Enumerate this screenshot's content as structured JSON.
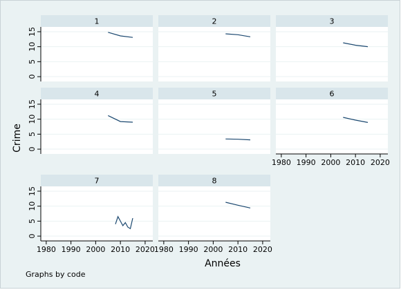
{
  "chart_data": {
    "type": "line",
    "xlabel": "Années",
    "ylabel": "Crime",
    "note": "Graphs by code",
    "color": "#1a476f",
    "grid": true,
    "xlim": [
      1977.8,
      2023.1
    ],
    "xticks": [
      1980,
      1990,
      2000,
      2010,
      2020
    ],
    "ylim": [
      -1.6,
      16.6
    ],
    "yticks": [
      0,
      5,
      10,
      15
    ],
    "panels": [
      {
        "title": "1",
        "x": [
          2005,
          2010,
          2015
        ],
        "values": [
          14.8,
          13.6,
          13.1
        ]
      },
      {
        "title": "2",
        "x": [
          2005,
          2010,
          2015
        ],
        "values": [
          14.3,
          14.0,
          13.3
        ]
      },
      {
        "title": "3",
        "x": [
          2005,
          2010,
          2015
        ],
        "values": [
          11.3,
          10.5,
          10.0
        ]
      },
      {
        "title": "4",
        "x": [
          2005,
          2010,
          2015
        ],
        "values": [
          11.2,
          9.2,
          9.0
        ]
      },
      {
        "title": "5",
        "x": [
          2005,
          2010,
          2015
        ],
        "values": [
          3.4,
          3.3,
          3.1
        ]
      },
      {
        "title": "6",
        "x": [
          2005,
          2010,
          2015
        ],
        "values": [
          10.6,
          9.7,
          8.9
        ]
      },
      {
        "title": "7",
        "x": [
          2008,
          2009,
          2010,
          2011,
          2012,
          2013,
          2014,
          2015
        ],
        "values": [
          4.0,
          6.5,
          5.0,
          3.5,
          4.5,
          3.0,
          2.5,
          6.0
        ]
      },
      {
        "title": "8",
        "x": [
          2005,
          2010,
          2015
        ],
        "values": [
          11.3,
          10.3,
          9.4
        ]
      }
    ]
  }
}
